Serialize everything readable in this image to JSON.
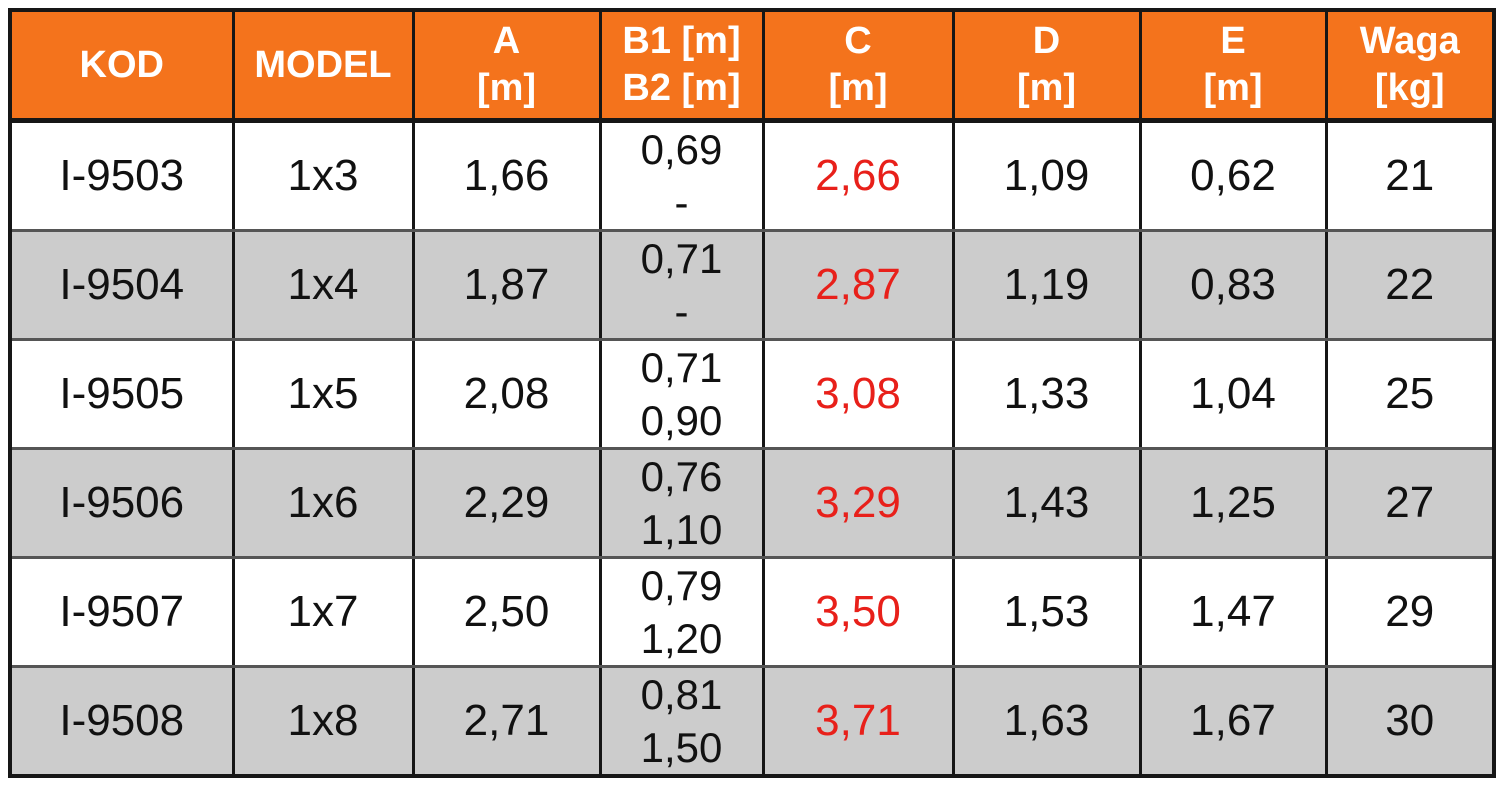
{
  "table": {
    "columns": [
      {
        "id": "kod",
        "lines": [
          "KOD"
        ]
      },
      {
        "id": "model",
        "lines": [
          "MODEL"
        ]
      },
      {
        "id": "a",
        "lines": [
          "A",
          "[m]"
        ]
      },
      {
        "id": "b",
        "lines": [
          "B1 [m]",
          "B2 [m]"
        ]
      },
      {
        "id": "c",
        "lines": [
          "C",
          "[m]"
        ]
      },
      {
        "id": "d",
        "lines": [
          "D",
          "[m]"
        ]
      },
      {
        "id": "e",
        "lines": [
          "E",
          "[m]"
        ]
      },
      {
        "id": "waga",
        "lines": [
          "Waga",
          "[kg]"
        ]
      }
    ],
    "rows": [
      {
        "kod": "I-9503",
        "model": "1x3",
        "a": "1,66",
        "b1": "0,69",
        "b2": "-",
        "c": "2,66",
        "d": "1,09",
        "e": "0,62",
        "waga": "21"
      },
      {
        "kod": "I-9504",
        "model": "1x4",
        "a": "1,87",
        "b1": "0,71",
        "b2": "-",
        "c": "2,87",
        "d": "1,19",
        "e": "0,83",
        "waga": "22"
      },
      {
        "kod": "I-9505",
        "model": "1x5",
        "a": "2,08",
        "b1": "0,71",
        "b2": "0,90",
        "c": "3,08",
        "d": "1,33",
        "e": "1,04",
        "waga": "25"
      },
      {
        "kod": "I-9506",
        "model": "1x6",
        "a": "2,29",
        "b1": "0,76",
        "b2": "1,10",
        "c": "3,29",
        "d": "1,43",
        "e": "1,25",
        "waga": "27"
      },
      {
        "kod": "I-9507",
        "model": "1x7",
        "a": "2,50",
        "b1": "0,79",
        "b2": "1,20",
        "c": "3,50",
        "d": "1,53",
        "e": "1,47",
        "waga": "29"
      },
      {
        "kod": "I-9508",
        "model": "1x8",
        "a": "2,71",
        "b1": "0,81",
        "b2": "1,50",
        "c": "3,71",
        "d": "1,63",
        "e": "1,67",
        "waga": "30"
      }
    ],
    "colors": {
      "header_bg": "#F4731C",
      "header_text": "#FFFFFF",
      "row_even_bg": "#FFFFFF",
      "row_odd_bg": "#CCCCCC",
      "c_column_text": "#E8201A",
      "body_text": "#111111"
    }
  }
}
